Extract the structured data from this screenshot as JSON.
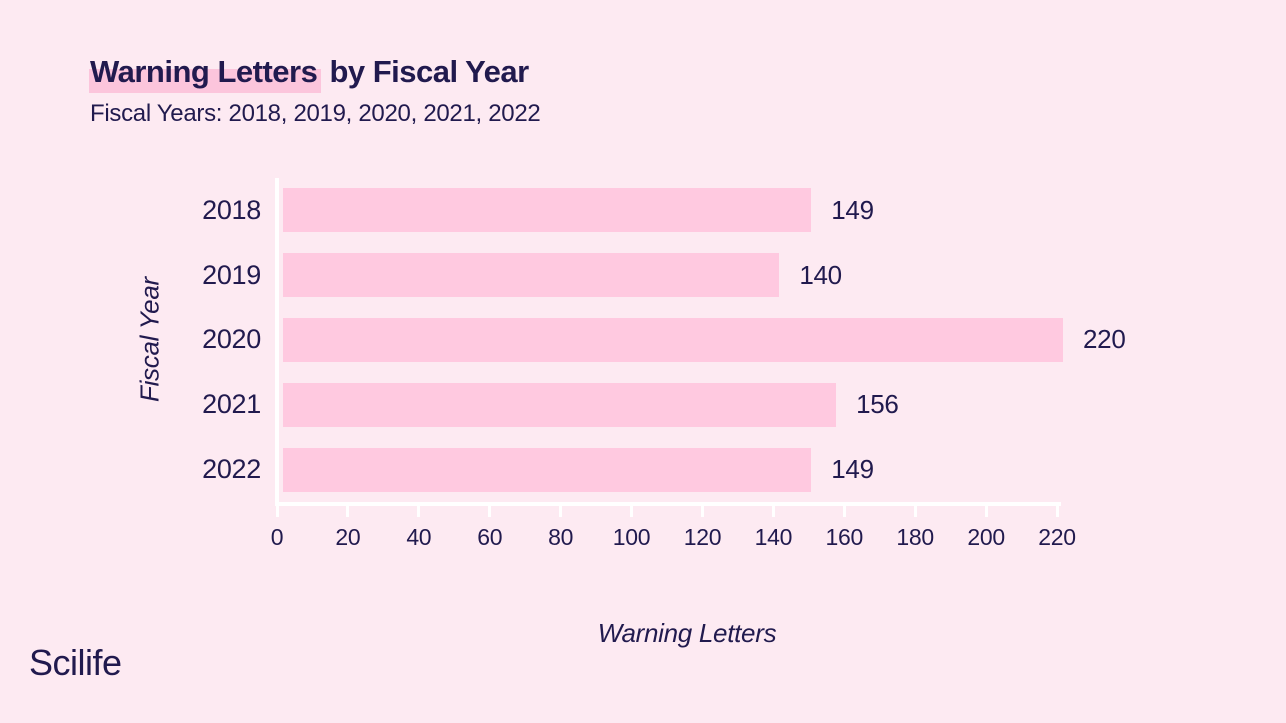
{
  "header": {
    "title_highlight": "Warning Letters",
    "title_rest": " by Fiscal Year",
    "subtitle": "Fiscal Years: 2018, 2019, 2020, 2021, 2022"
  },
  "footer": {
    "logo": "Scilife"
  },
  "colors": {
    "background": "#fdeaf2",
    "bar": "#ffc9e0",
    "title_highlight": "#fcc5dc",
    "text": "#211a4e",
    "axis_line": "#ffffff"
  },
  "chart_data": {
    "type": "bar",
    "orientation": "horizontal",
    "title": "Warning Letters by Fiscal Year",
    "categories": [
      "2018",
      "2019",
      "2020",
      "2021",
      "2022"
    ],
    "values": [
      149,
      140,
      220,
      156,
      149
    ],
    "xlabel": "Warning Letters",
    "ylabel": "Fiscal Year",
    "xlim": [
      0,
      220
    ],
    "xticks": [
      0,
      20,
      40,
      60,
      80,
      100,
      120,
      140,
      160,
      180,
      200,
      220
    ],
    "grid": false,
    "value_labels": true,
    "legend_position": "none"
  }
}
